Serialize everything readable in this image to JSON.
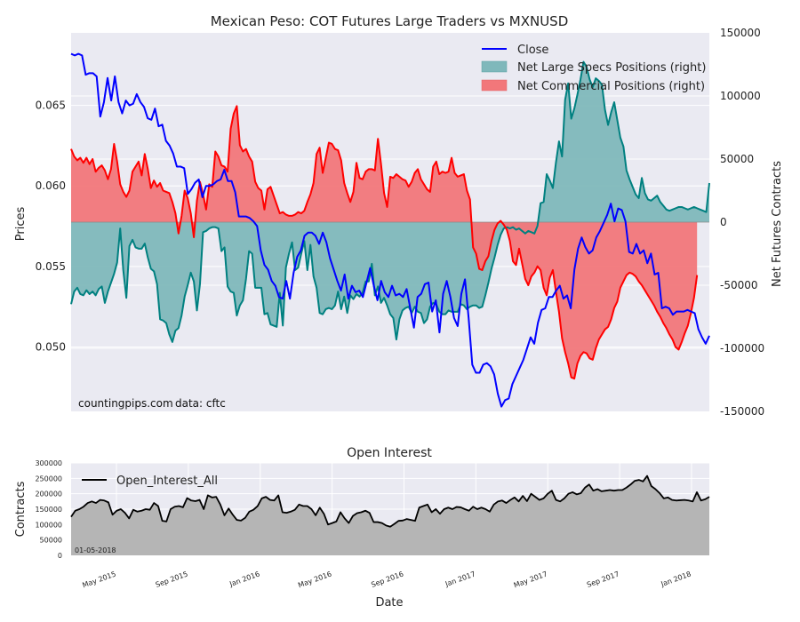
{
  "chart_data": [
    {
      "type": "line",
      "title": "Mexican Peso: COT Futures Large Traders vs MXNUSD",
      "ylabel": "Prices",
      "y2label": "Net Futures Contracts",
      "ylim": [
        0.046,
        0.0695
      ],
      "y2lim": [
        -150000,
        150000
      ],
      "yticks": [
        "0.050",
        "0.055",
        "0.060",
        "0.065"
      ],
      "yticks_values": [
        0.05,
        0.055,
        0.06,
        0.065
      ],
      "y2ticks": [
        "150000",
        "100000",
        "50000",
        "0",
        "-50000",
        "-100000",
        "-150000"
      ],
      "y2ticks_values": [
        150000,
        100000,
        50000,
        0,
        -50000,
        -100000,
        -150000
      ],
      "legend_position": "top-right",
      "grid": true,
      "annotation": {
        "source": "countingpips.com",
        "data": "data: cftc"
      },
      "colors": {
        "close": "#0000ff",
        "specs": "#008080",
        "commercial": "#ff0000",
        "specs_fill": "#7fb8bb",
        "commercial_fill": "#f2777a",
        "overlap": "#800080",
        "background": "#eaeaf2"
      },
      "series": [
        {
          "name": "Close",
          "values": [
            0.0682,
            0.0681,
            0.0682,
            0.0681,
            0.0669,
            0.067,
            0.067,
            0.0668,
            0.0643,
            0.0652,
            0.0667,
            0.0653,
            0.0668,
            0.0652,
            0.0645,
            0.0653,
            0.065,
            0.0651,
            0.0657,
            0.0652,
            0.0649,
            0.0642,
            0.0641,
            0.0648,
            0.0637,
            0.0638,
            0.0628,
            0.0625,
            0.062,
            0.0612,
            0.0612,
            0.0611,
            0.0595,
            0.0598,
            0.0602,
            0.0604,
            0.0593,
            0.06,
            0.06,
            0.0601,
            0.0603,
            0.0604,
            0.061,
            0.0603,
            0.0603,
            0.0596,
            0.0581,
            0.0581,
            0.0581,
            0.058,
            0.0578,
            0.0575,
            0.056,
            0.0551,
            0.0548,
            0.0541,
            0.0538,
            0.0531,
            0.053,
            0.0541,
            0.053,
            0.0546,
            0.0556,
            0.056,
            0.0569,
            0.0571,
            0.0571,
            0.0569,
            0.0564,
            0.0571,
            0.0565,
            0.0555,
            0.0548,
            0.0541,
            0.0535,
            0.0545,
            0.053,
            0.0538,
            0.0534,
            0.0535,
            0.0531,
            0.054,
            0.0549,
            0.0538,
            0.0529,
            0.0541,
            0.0534,
            0.0531,
            0.0538,
            0.0532,
            0.0533,
            0.0531,
            0.0536,
            0.0524,
            0.0512,
            0.0531,
            0.0533,
            0.0539,
            0.054,
            0.0522,
            0.0529,
            0.0509,
            0.0533,
            0.0541,
            0.0531,
            0.0518,
            0.0513,
            0.0533,
            0.0542,
            0.0518,
            0.0489,
            0.0484,
            0.0484,
            0.0489,
            0.049,
            0.0488,
            0.0483,
            0.0471,
            0.0463,
            0.0467,
            0.0468,
            0.0477,
            0.0482,
            0.0487,
            0.0492,
            0.0499,
            0.0506,
            0.0502,
            0.0515,
            0.0523,
            0.0524,
            0.0531,
            0.0531,
            0.0535,
            0.0538,
            0.053,
            0.0532,
            0.0524,
            0.0548,
            0.0561,
            0.0568,
            0.0562,
            0.0558,
            0.056,
            0.0568,
            0.0572,
            0.0577,
            0.0582,
            0.0589,
            0.0578,
            0.0586,
            0.0585,
            0.0578,
            0.0559,
            0.0558,
            0.0564,
            0.0558,
            0.056,
            0.0552,
            0.0558,
            0.0545,
            0.0546,
            0.0524,
            0.0525,
            0.0524,
            0.052,
            0.0522,
            0.0522,
            0.0522,
            0.0523,
            0.0522,
            0.0521,
            0.0511,
            0.0506,
            0.0502,
            0.0507
          ]
        },
        {
          "name": "Net Large Specs Positions (right)",
          "values": [
            -65000,
            -55000,
            -52000,
            -57000,
            -58000,
            -54000,
            -57000,
            -55000,
            -58000,
            -53000,
            -51000,
            -64000,
            -55000,
            -48000,
            -41000,
            -32000,
            -5000,
            -38000,
            -60000,
            -19000,
            -14000,
            -20000,
            -21000,
            -21000,
            -17000,
            -28000,
            -37000,
            -39000,
            -49000,
            -77000,
            -78000,
            -80000,
            -89000,
            -95000,
            -86000,
            -84000,
            -74000,
            -59000,
            -50000,
            -40000,
            -47000,
            -70000,
            -49000,
            -8000,
            -7000,
            -5000,
            -4000,
            -4000,
            -5000,
            -23000,
            -20000,
            -51000,
            -55000,
            -56000,
            -74000,
            -66000,
            -62000,
            -45000,
            -23000,
            -25000,
            -52000,
            -52000,
            -52000,
            -73000,
            -72000,
            -81000,
            -82000,
            -83000,
            -56000,
            -82000,
            -36000,
            -25000,
            -16000,
            -38000,
            -36000,
            -25000,
            -15000,
            -38000,
            -18000,
            -43000,
            -52000,
            -72000,
            -73000,
            -69000,
            -68000,
            -69000,
            -66000,
            -55000,
            -69000,
            -59000,
            -72000,
            -58000,
            -61000,
            -57000,
            -59000,
            -56000,
            -47000,
            -47000,
            -33000,
            -58000,
            -51000,
            -64000,
            -60000,
            -66000,
            -73000,
            -76000,
            -93000,
            -77000,
            -70000,
            -68000,
            -67000,
            -72000,
            -67000,
            -71000,
            -72000,
            -80000,
            -77000,
            -67000,
            -64000,
            -65000,
            -71000,
            -73000,
            -73000,
            -70000,
            -71000,
            -71000,
            -71000,
            -65000,
            -66000,
            -69000,
            -67000,
            -66000,
            -66000,
            -68000,
            -67000,
            -58000,
            -48000,
            -37000,
            -28000,
            -18000,
            -10000,
            -5000,
            -4000,
            -5000,
            -4000,
            -6000,
            -5000,
            -7000,
            -9000,
            -7000,
            -8000,
            -9000,
            -3000,
            15000,
            16000,
            38000,
            33000,
            27000,
            47000,
            64000,
            52000,
            97000,
            110000,
            82000,
            90000,
            101000,
            113000,
            127000,
            123000,
            113000,
            107000,
            114000,
            112000,
            109000,
            89000,
            77000,
            87000,
            95000,
            81000,
            67000,
            60000,
            41000,
            34000,
            28000,
            22000,
            19000,
            35000,
            23000,
            18000,
            17000,
            19000,
            21000,
            16000,
            13000,
            10000,
            9000,
            10000,
            11000,
            12000,
            12000,
            11000,
            10000,
            11000,
            12000,
            11000,
            10000,
            9000,
            8000,
            31000
          ]
        },
        {
          "name": "Net Commercial Positions (right)",
          "values": [
            58000,
            52000,
            49000,
            51000,
            47000,
            51000,
            46000,
            50000,
            40000,
            43000,
            45000,
            41000,
            34000,
            42000,
            62000,
            48000,
            30000,
            24000,
            20000,
            25000,
            40000,
            44000,
            48000,
            37000,
            54000,
            42000,
            27000,
            33000,
            28000,
            31000,
            25000,
            24000,
            23000,
            16000,
            7000,
            -9000,
            5000,
            25000,
            19000,
            7000,
            -12000,
            17000,
            32000,
            22000,
            10000,
            30000,
            28000,
            56000,
            52000,
            45000,
            44000,
            40000,
            74000,
            86000,
            92000,
            61000,
            56000,
            58000,
            52000,
            48000,
            32000,
            27000,
            25000,
            10000,
            26000,
            28000,
            21000,
            14000,
            7000,
            8000,
            6000,
            5000,
            5000,
            6000,
            8000,
            7000,
            9000,
            16000,
            22000,
            31000,
            54000,
            59000,
            39000,
            51000,
            63000,
            62000,
            58000,
            57000,
            49000,
            31000,
            23000,
            16000,
            24000,
            47000,
            35000,
            34000,
            40000,
            42000,
            42000,
            41000,
            66000,
            46000,
            23000,
            12000,
            36000,
            35000,
            38000,
            36000,
            34000,
            33000,
            28000,
            32000,
            39000,
            42000,
            34000,
            30000,
            26000,
            24000,
            44000,
            48000,
            38000,
            40000,
            39000,
            40000,
            51000,
            39000,
            36000,
            37000,
            38000,
            25000,
            18000,
            -20000,
            -25000,
            -37000,
            -38000,
            -31000,
            -27000,
            -15000,
            -6000,
            -1000,
            1000,
            -2000,
            -6000,
            -15000,
            -31000,
            -34000,
            -21000,
            -33000,
            -45000,
            -50000,
            -43000,
            -40000,
            -35000,
            -38000,
            -52000,
            -58000,
            -44000,
            -38000,
            -55000,
            -71000,
            -92000,
            -103000,
            -112000,
            -123000,
            -124000,
            -112000,
            -106000,
            -103000,
            -104000,
            -108000,
            -109000,
            -100000,
            -93000,
            -89000,
            -85000,
            -83000,
            -77000,
            -68000,
            -63000,
            -52000,
            -47000,
            -42000,
            -40000,
            -41000,
            -43000,
            -47000,
            -50000,
            -54000,
            -58000,
            -62000,
            -66000,
            -71000,
            -75000,
            -80000,
            -84000,
            -89000,
            -93000,
            -99000,
            -101000,
            -95000,
            -88000,
            -82000,
            -72000,
            -60000,
            -42000
          ]
        }
      ]
    },
    {
      "type": "area",
      "title": "Open Interest",
      "xlabel": "Date",
      "ylabel": "Contracts",
      "ylim": [
        0,
        300000
      ],
      "yticks": [
        "300000",
        "250000",
        "200000",
        "150000",
        "100000",
        "50000",
        "0"
      ],
      "yticks_values": [
        300000,
        250000,
        200000,
        150000,
        100000,
        50000,
        0
      ],
      "xticks": [
        "May 2015",
        "Sep 2015",
        "Jan 2016",
        "May 2016",
        "Sep 2016",
        "Jan 2017",
        "May 2017",
        "Sep 2017",
        "Jan 2018"
      ],
      "date_note": "01-05-2018",
      "legend_position": "top-left",
      "grid": true,
      "colors": {
        "line": "#000000",
        "fill": "#b5b5b5",
        "background": "#eaeaf2"
      },
      "series": [
        {
          "name": "Open_Interest_All",
          "values": [
            125000,
            145000,
            150000,
            158000,
            170000,
            175000,
            170000,
            180000,
            178000,
            172000,
            132000,
            145000,
            150000,
            138000,
            120000,
            148000,
            142000,
            145000,
            150000,
            148000,
            170000,
            160000,
            112000,
            110000,
            150000,
            158000,
            160000,
            156000,
            186000,
            178000,
            176000,
            180000,
            150000,
            195000,
            188000,
            190000,
            165000,
            130000,
            152000,
            132000,
            115000,
            113000,
            122000,
            142000,
            148000,
            160000,
            185000,
            190000,
            180000,
            178000,
            195000,
            140000,
            138000,
            142000,
            148000,
            165000,
            160000,
            160000,
            150000,
            130000,
            155000,
            135000,
            100000,
            105000,
            110000,
            140000,
            120000,
            105000,
            128000,
            137000,
            140000,
            145000,
            138000,
            108000,
            108000,
            105000,
            97000,
            93000,
            102000,
            112000,
            113000,
            118000,
            115000,
            112000,
            155000,
            160000,
            165000,
            140000,
            150000,
            135000,
            150000,
            155000,
            150000,
            157000,
            156000,
            150000,
            145000,
            158000,
            150000,
            155000,
            150000,
            142000,
            165000,
            175000,
            178000,
            170000,
            180000,
            188000,
            175000,
            193000,
            176000,
            200000,
            190000,
            180000,
            185000,
            200000,
            210000,
            180000,
            175000,
            185000,
            200000,
            205000,
            198000,
            202000,
            220000,
            230000,
            210000,
            215000,
            208000,
            210000,
            212000,
            210000,
            212000,
            212000,
            220000,
            230000,
            242000,
            245000,
            240000,
            258000,
            225000,
            215000,
            202000,
            185000,
            188000,
            180000,
            178000,
            179000,
            180000,
            178000,
            175000,
            205000,
            178000,
            182000,
            190000
          ]
        }
      ]
    }
  ]
}
